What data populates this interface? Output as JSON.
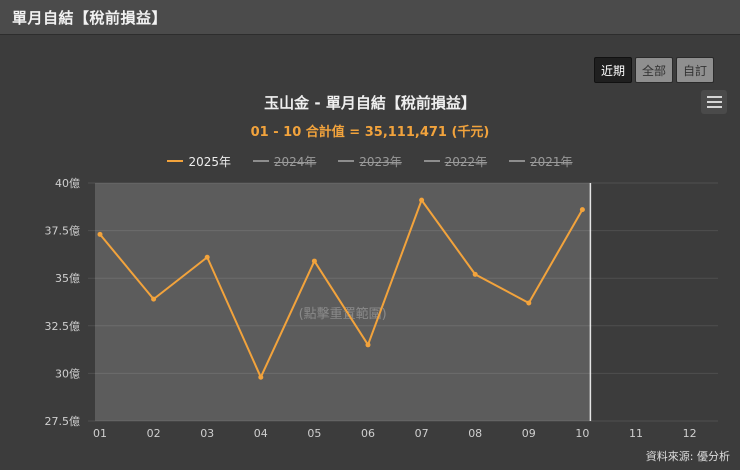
{
  "page": {
    "header_title": "單月自結【稅前損益】",
    "source_label": "資料來源: 優分析"
  },
  "range_selector": {
    "buttons": [
      {
        "label": "近期",
        "active": true
      },
      {
        "label": "全部",
        "active": false
      },
      {
        "label": "自訂",
        "active": false
      }
    ]
  },
  "chart": {
    "title": "玉山金 - 單月自結【稅前損益】",
    "subtitle": "01 - 10 合計值 = 35,111,471 (千元)",
    "band_label": "(點擊重置範圍)"
  },
  "legend": {
    "items": [
      {
        "label": "2025年",
        "active": true
      },
      {
        "label": "2024年",
        "active": false
      },
      {
        "label": "2023年",
        "active": false
      },
      {
        "label": "2022年",
        "active": false
      },
      {
        "label": "2021年",
        "active": false
      }
    ]
  },
  "icons": {
    "menu": "hamburger-icon"
  },
  "colors": {
    "accent_orange": "#f2a33c",
    "page_bg": "#3c3c3c",
    "header_bg": "#4b4b4b",
    "band_fill": "#5c5c5c",
    "inactive_gray": "#9a9a9a"
  },
  "chart_data": {
    "type": "line",
    "title": "玉山金 - 單月自結【稅前損益】",
    "subtitle": "01 - 10 合計值 = 35,111,471 (千元)",
    "unit": "億",
    "x_categories": [
      "01",
      "02",
      "03",
      "04",
      "05",
      "06",
      "07",
      "08",
      "09",
      "10",
      "11",
      "12"
    ],
    "y_ticks": [
      {
        "value": 40,
        "label": "40億"
      },
      {
        "value": 37.5,
        "label": "37.5億"
      },
      {
        "value": 35,
        "label": "35億"
      },
      {
        "value": 32.5,
        "label": "32.5億"
      },
      {
        "value": 30,
        "label": "30億"
      },
      {
        "value": 27.5,
        "label": "27.5億"
      }
    ],
    "ylim": [
      27.5,
      40
    ],
    "grid": true,
    "legend_position": "top-center",
    "selected_range": {
      "from": "01",
      "to": "10"
    },
    "series": [
      {
        "name": "2025年",
        "color": "#f2a33c",
        "visible": true,
        "values": [
          37.3,
          33.9,
          36.1,
          29.8,
          35.9,
          31.5,
          39.1,
          35.2,
          33.7,
          38.6
        ]
      },
      {
        "name": "2024年",
        "visible": false,
        "values": null
      },
      {
        "name": "2023年",
        "visible": false,
        "values": null
      },
      {
        "name": "2022年",
        "visible": false,
        "values": null
      },
      {
        "name": "2021年",
        "visible": false,
        "values": null
      }
    ],
    "total_value_thousand_ntd": "35,111,471"
  }
}
